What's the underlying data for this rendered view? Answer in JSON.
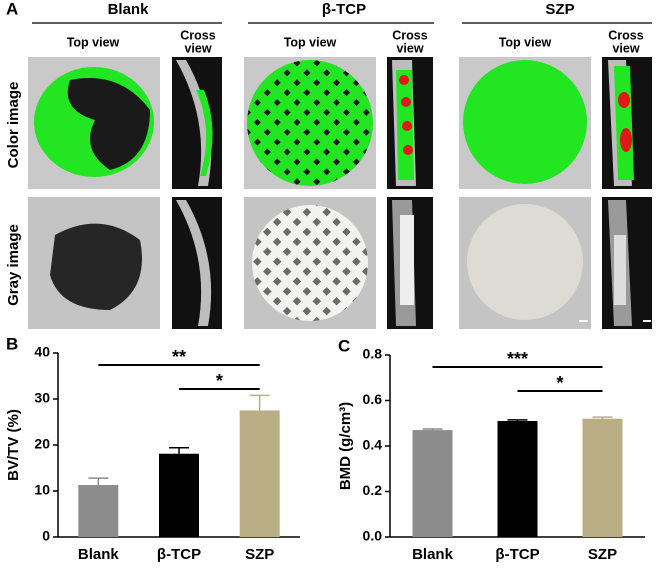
{
  "panel_a": {
    "label": "A",
    "columns": [
      "Blank",
      "β-TCP",
      "SZP"
    ],
    "top_view": "Top view",
    "cross_view": [
      "Cross",
      "view"
    ],
    "rows": [
      "Color image",
      "Gray image"
    ]
  },
  "chart_data": [
    {
      "type": "bar",
      "panel": "B",
      "ylabel": "BV/TV (%)",
      "categories": [
        "Blank",
        "β-TCP",
        "SZP"
      ],
      "values": [
        11.3,
        18.1,
        27.5
      ],
      "errors": [
        1.5,
        1.3,
        3.3
      ],
      "colors": [
        "#8c8c8c",
        "#000000",
        "#b9ae86"
      ],
      "ylim": [
        0,
        40
      ],
      "yticks": [
        0,
        10,
        20,
        30,
        40
      ],
      "annotations": [
        {
          "text": "**",
          "span": [
            0,
            2
          ]
        },
        {
          "text": "*",
          "span": [
            1,
            2
          ]
        }
      ]
    },
    {
      "type": "bar",
      "panel": "C",
      "ylabel": "BMD (g/cm³)",
      "categories": [
        "Blank",
        "β-TCP",
        "SZP"
      ],
      "values": [
        0.47,
        0.51,
        0.52
      ],
      "errors": [
        0.005,
        0.005,
        0.007
      ],
      "colors": [
        "#8c8c8c",
        "#000000",
        "#b9ae86"
      ],
      "ylim": [
        0,
        0.8
      ],
      "yticks": [
        {
          "value": 0,
          "label": "0.0"
        },
        {
          "value": 0.2,
          "label": "0.2"
        },
        {
          "value": 0.4,
          "label": "0.4"
        },
        {
          "value": 0.6,
          "label": "0.6"
        },
        {
          "value": 0.8,
          "label": "0.8"
        }
      ],
      "annotations": [
        {
          "text": "***",
          "span": [
            0,
            2
          ]
        },
        {
          "text": "*",
          "span": [
            1,
            2
          ]
        }
      ]
    }
  ]
}
